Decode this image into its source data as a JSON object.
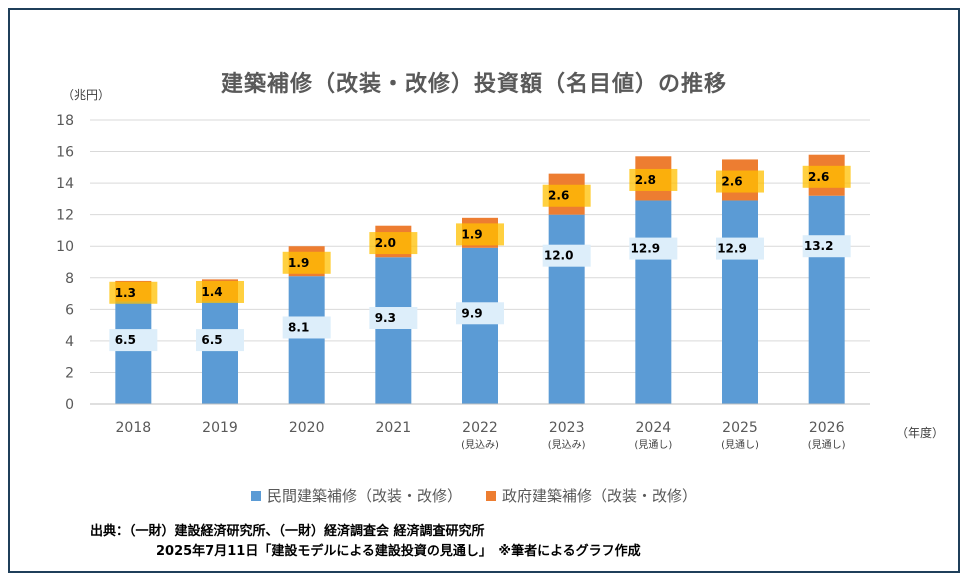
{
  "chart_data": {
    "type": "bar",
    "stacked": true,
    "title": "建築補修（改装・改修）投資額（名目値）の推移",
    "ylabel": "（兆円）",
    "xlabel": "（年度）",
    "ylim": [
      0,
      18
    ],
    "yticks": [
      0,
      2,
      4,
      6,
      8,
      10,
      12,
      14,
      16,
      18
    ],
    "grid": true,
    "legend_position": "bottom",
    "categories": [
      "2018",
      "2019",
      "2020",
      "2021",
      "2022",
      "2023",
      "2024",
      "2025",
      "2026"
    ],
    "category_notes": [
      "",
      "",
      "",
      "",
      "(見込み)",
      "(見込み)",
      "(見通し)",
      "(見通し)",
      "(見通し)"
    ],
    "series": [
      {
        "name": "民間建築補修（改装・改修）",
        "color": "#5b9bd5",
        "values": [
          6.5,
          6.5,
          8.1,
          9.3,
          9.9,
          12.0,
          12.9,
          12.9,
          13.2
        ]
      },
      {
        "name": "政府建築補修（改装・改修）",
        "color": "#ed7d31",
        "values": [
          1.3,
          1.4,
          1.9,
          2.0,
          1.9,
          2.6,
          2.8,
          2.6,
          2.6
        ]
      }
    ],
    "data_labels": {
      "private": [
        "6.5",
        "6.5",
        "8.1",
        "9.3",
        "9.9",
        "12.0",
        "12.9",
        "12.9",
        "13.2"
      ],
      "public": [
        "1.3",
        "1.4",
        "1.9",
        "2.0",
        "1.9",
        "2.6",
        "2.8",
        "2.6",
        "2.6"
      ]
    }
  },
  "source": {
    "line1": "出典：（一財）建設経済研究所、（一財）経済調査会 経済調査研究所",
    "line2": "2025年7月11日「建設モデルによる建設投資の見通し」　※筆者によるグラフ作成"
  }
}
